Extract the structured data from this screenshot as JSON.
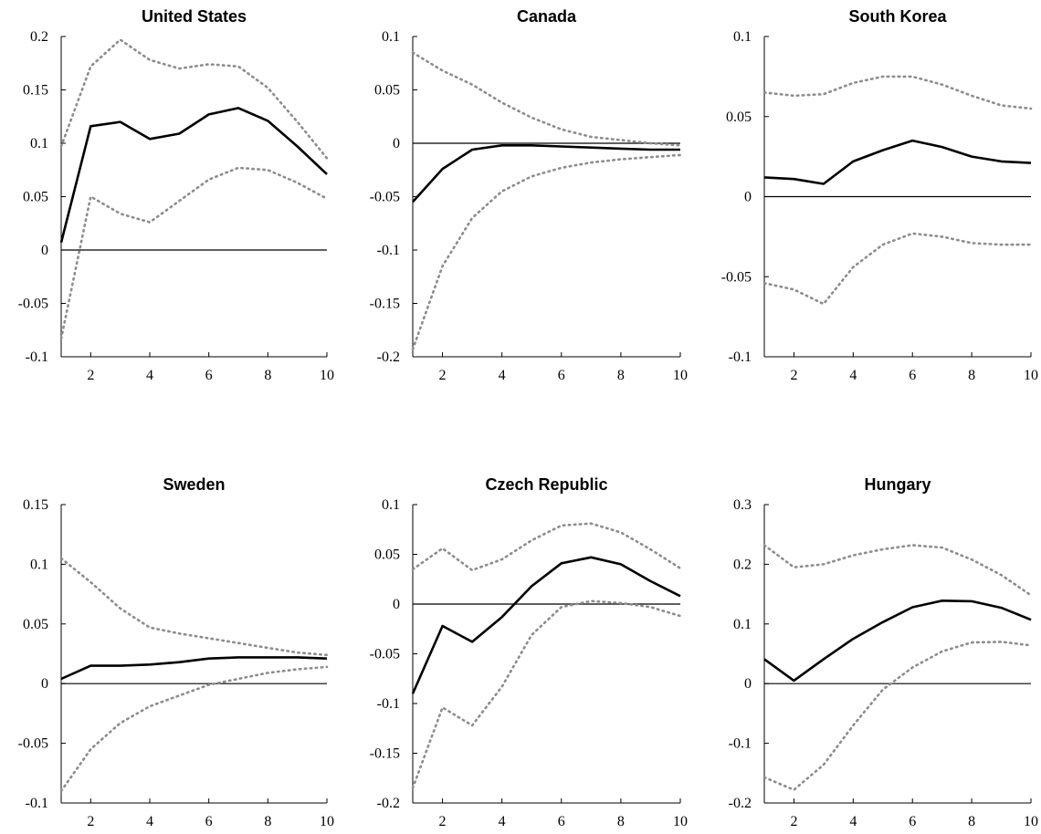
{
  "chart_data": [
    {
      "type": "line",
      "title": "United States",
      "x": [
        1,
        2,
        3,
        4,
        5,
        6,
        7,
        8,
        9,
        10
      ],
      "ylim": [
        -0.1,
        0.2
      ],
      "yticks": [
        "-0.1",
        "-0.05",
        "0",
        "0.05",
        "0.1",
        "0.15",
        "0.2"
      ],
      "ytick_values": [
        -0.1,
        -0.05,
        0,
        0.05,
        0.1,
        0.15,
        0.2
      ],
      "xticks": [
        "2",
        "4",
        "6",
        "8",
        "10"
      ],
      "xtick_values": [
        2,
        4,
        6,
        8,
        10
      ],
      "series": [
        {
          "role": "estimate",
          "values": [
            0.007,
            0.116,
            0.12,
            0.104,
            0.109,
            0.127,
            0.133,
            0.121,
            0.097,
            0.071
          ]
        },
        {
          "role": "upper",
          "values": [
            0.097,
            0.172,
            0.197,
            0.178,
            0.17,
            0.174,
            0.172,
            0.152,
            0.12,
            0.086
          ]
        },
        {
          "role": "lower",
          "values": [
            -0.083,
            0.05,
            0.034,
            0.026,
            0.046,
            0.066,
            0.077,
            0.075,
            0.063,
            0.048
          ]
        }
      ]
    },
    {
      "type": "line",
      "title": "Canada",
      "x": [
        1,
        2,
        3,
        4,
        5,
        6,
        7,
        8,
        9,
        10
      ],
      "ylim": [
        -0.2,
        0.1
      ],
      "yticks": [
        "-0.2",
        "-0.15",
        "-0.1",
        "-0.05",
        "0",
        "0.05",
        "0.1"
      ],
      "ytick_values": [
        -0.2,
        -0.15,
        -0.1,
        -0.05,
        0,
        0.05,
        0.1
      ],
      "xticks": [
        "2",
        "4",
        "6",
        "8",
        "10"
      ],
      "xtick_values": [
        2,
        4,
        6,
        8,
        10
      ],
      "series": [
        {
          "role": "estimate",
          "values": [
            -0.055,
            -0.024,
            -0.006,
            -0.002,
            -0.002,
            -0.003,
            -0.004,
            -0.005,
            -0.006,
            -0.006
          ]
        },
        {
          "role": "upper",
          "values": [
            0.085,
            0.068,
            0.055,
            0.038,
            0.024,
            0.013,
            0.006,
            0.003,
            0.0,
            -0.002
          ]
        },
        {
          "role": "lower",
          "values": [
            -0.193,
            -0.115,
            -0.07,
            -0.045,
            -0.031,
            -0.023,
            -0.018,
            -0.015,
            -0.013,
            -0.011
          ]
        }
      ]
    },
    {
      "type": "line",
      "title": "South Korea",
      "x": [
        1,
        2,
        3,
        4,
        5,
        6,
        7,
        8,
        9,
        10
      ],
      "ylim": [
        -0.1,
        0.1
      ],
      "yticks": [
        "-0.1",
        "-0.05",
        "0",
        "0.05",
        "0.1"
      ],
      "ytick_values": [
        -0.1,
        -0.05,
        0,
        0.05,
        0.1
      ],
      "xticks": [
        "2",
        "4",
        "6",
        "8",
        "10"
      ],
      "xtick_values": [
        2,
        4,
        6,
        8,
        10
      ],
      "series": [
        {
          "role": "estimate",
          "values": [
            0.012,
            0.011,
            0.008,
            0.022,
            0.029,
            0.035,
            0.031,
            0.025,
            0.022,
            0.021
          ]
        },
        {
          "role": "upper",
          "values": [
            0.065,
            0.063,
            0.064,
            0.071,
            0.075,
            0.075,
            0.07,
            0.063,
            0.057,
            0.055
          ]
        },
        {
          "role": "lower",
          "values": [
            -0.054,
            -0.058,
            -0.067,
            -0.044,
            -0.03,
            -0.023,
            -0.025,
            -0.029,
            -0.03,
            -0.03
          ]
        }
      ]
    },
    {
      "type": "line",
      "title": "Sweden",
      "x": [
        1,
        2,
        3,
        4,
        5,
        6,
        7,
        8,
        9,
        10
      ],
      "ylim": [
        -0.1,
        0.15
      ],
      "yticks": [
        "-0.1",
        "-0.05",
        "0",
        "0.05",
        "0.1",
        "0.15"
      ],
      "ytick_values": [
        -0.1,
        -0.05,
        0,
        0.05,
        0.1,
        0.15
      ],
      "xticks": [
        "2",
        "4",
        "6",
        "8",
        "10"
      ],
      "xtick_values": [
        2,
        4,
        6,
        8,
        10
      ],
      "series": [
        {
          "role": "estimate",
          "values": [
            0.004,
            0.015,
            0.015,
            0.016,
            0.018,
            0.021,
            0.022,
            0.022,
            0.022,
            0.021
          ]
        },
        {
          "role": "upper",
          "values": [
            0.105,
            0.085,
            0.063,
            0.047,
            0.042,
            0.038,
            0.034,
            0.03,
            0.026,
            0.024
          ]
        },
        {
          "role": "lower",
          "values": [
            -0.09,
            -0.055,
            -0.033,
            -0.019,
            -0.01,
            -0.001,
            0.004,
            0.009,
            0.012,
            0.014
          ]
        }
      ]
    },
    {
      "type": "line",
      "title": "Czech Republic",
      "x": [
        1,
        2,
        3,
        4,
        5,
        6,
        7,
        8,
        9,
        10
      ],
      "ylim": [
        -0.2,
        0.1
      ],
      "yticks": [
        "-0.2",
        "-0.15",
        "-0.1",
        "-0.05",
        "0",
        "0.05",
        "0.1"
      ],
      "ytick_values": [
        -0.2,
        -0.15,
        -0.1,
        -0.05,
        0,
        0.05,
        0.1
      ],
      "xticks": [
        "2",
        "4",
        "6",
        "8",
        "10"
      ],
      "xtick_values": [
        2,
        4,
        6,
        8,
        10
      ],
      "series": [
        {
          "role": "estimate",
          "values": [
            -0.09,
            -0.022,
            -0.038,
            -0.013,
            0.018,
            0.041,
            0.047,
            0.04,
            0.023,
            0.008
          ]
        },
        {
          "role": "upper",
          "values": [
            0.035,
            0.056,
            0.034,
            0.045,
            0.064,
            0.079,
            0.081,
            0.072,
            0.055,
            0.036
          ]
        },
        {
          "role": "lower",
          "values": [
            -0.185,
            -0.104,
            -0.122,
            -0.083,
            -0.031,
            -0.003,
            0.003,
            0.001,
            -0.003,
            -0.012
          ]
        }
      ]
    },
    {
      "type": "line",
      "title": "Hungary",
      "x": [
        1,
        2,
        3,
        4,
        5,
        6,
        7,
        8,
        9,
        10
      ],
      "ylim": [
        -0.2,
        0.3
      ],
      "yticks": [
        "-0.2",
        "-0.1",
        "0",
        "0.1",
        "0.2",
        "0.3"
      ],
      "ytick_values": [
        -0.2,
        -0.1,
        0,
        0.1,
        0.2,
        0.3
      ],
      "xticks": [
        "2",
        "4",
        "6",
        "8",
        "10"
      ],
      "xtick_values": [
        2,
        4,
        6,
        8,
        10
      ],
      "series": [
        {
          "role": "estimate",
          "values": [
            0.041,
            0.005,
            0.041,
            0.075,
            0.103,
            0.128,
            0.139,
            0.138,
            0.127,
            0.107
          ]
        },
        {
          "role": "upper",
          "values": [
            0.232,
            0.195,
            0.2,
            0.215,
            0.225,
            0.232,
            0.228,
            0.208,
            0.182,
            0.148
          ]
        },
        {
          "role": "lower",
          "values": [
            -0.157,
            -0.178,
            -0.136,
            -0.07,
            -0.01,
            0.027,
            0.054,
            0.069,
            0.07,
            0.064
          ]
        }
      ]
    }
  ]
}
